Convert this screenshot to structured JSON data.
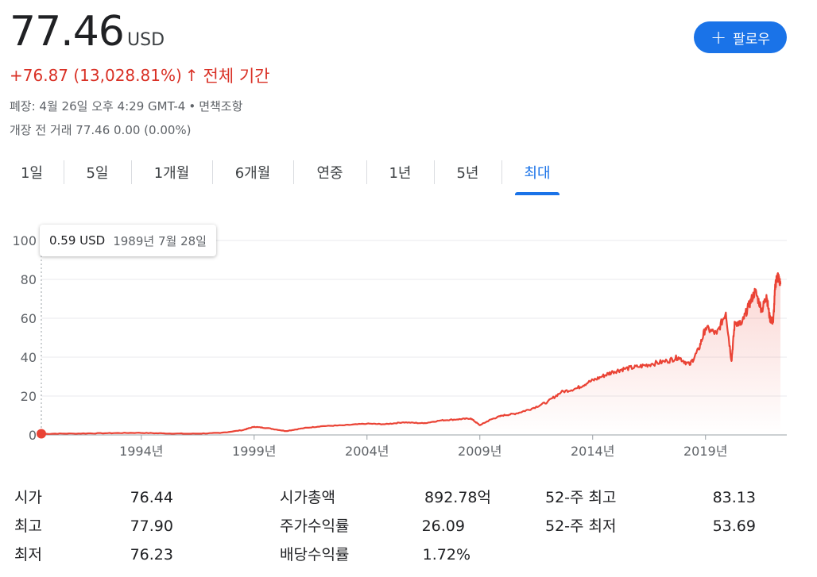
{
  "quote": {
    "price": "77.46",
    "currency": "USD",
    "change": "+76.87 (13,028.81%)",
    "change_arrow": "↑",
    "period": "전체 기간",
    "close_info": "폐장: 4월 26일 오후 4:29 GMT-4",
    "disclaimer": "면책조항",
    "premarket": "개장 전 거래 77.46 0.00 (0.00%)",
    "follow_label": "팔로우",
    "follow_icon": "plus-icon"
  },
  "tabs": [
    {
      "label": "1일"
    },
    {
      "label": "5일"
    },
    {
      "label": "1개월"
    },
    {
      "label": "6개월"
    },
    {
      "label": "연중"
    },
    {
      "label": "1년"
    },
    {
      "label": "5년"
    },
    {
      "label": "최대",
      "active": true
    }
  ],
  "tooltip": {
    "price": "0.59 USD",
    "date": "1989년 7월 28일"
  },
  "chart_data": {
    "type": "area",
    "title": "",
    "xlabel": "",
    "ylabel": "",
    "ylim": [
      0,
      100
    ],
    "xlim": [
      1989.57,
      2022.32
    ],
    "yticks": [
      "0",
      "20",
      "40",
      "60",
      "80",
      "100"
    ],
    "xticks": [
      {
        "value": 1994,
        "label": "1994년"
      },
      {
        "value": 1999,
        "label": "1999년"
      },
      {
        "value": 2004,
        "label": "2004년"
      },
      {
        "value": 2009,
        "label": "2009년"
      },
      {
        "value": 2014,
        "label": "2014년"
      },
      {
        "value": 2019,
        "label": "2019년"
      }
    ],
    "grid": true,
    "line_color": "#ea4335",
    "series": [
      {
        "x": [
          1989.57,
          1991.0,
          1992.5,
          1993.8,
          1995.0,
          1996.2,
          1997.5,
          1998.5,
          1999.0,
          1999.6,
          2000.4,
          2001.2,
          2002.0,
          2003.0,
          2004.0,
          2004.8,
          2005.6,
          2006.5,
          2007.3,
          2008.0,
          2008.6,
          2009.0,
          2009.5,
          2010.0,
          2010.6,
          2011.3,
          2012.0,
          2012.6,
          2013.3,
          2013.8,
          2014.4,
          2014.9,
          2015.4,
          2016.0,
          2016.6,
          2017.3,
          2017.8,
          2018.3,
          2018.7,
          2019.0,
          2019.5,
          2019.9,
          2020.15,
          2020.3,
          2020.6,
          2020.9,
          2021.2,
          2021.5,
          2021.7,
          2021.85,
          2022.0,
          2022.1,
          2022.2,
          2022.32
        ],
        "y": [
          0.59,
          0.7,
          0.9,
          1.1,
          0.8,
          0.6,
          1.0,
          2.5,
          4.2,
          3.5,
          2.0,
          3.5,
          4.5,
          5.0,
          5.8,
          5.5,
          6.5,
          6.0,
          7.5,
          8.0,
          8.5,
          5.0,
          8.0,
          10.0,
          11.0,
          13.5,
          17.0,
          22.0,
          24.0,
          27.0,
          30.0,
          32.5,
          34.0,
          35.0,
          36.5,
          38.0,
          40.0,
          36.0,
          44.0,
          55.0,
          52.0,
          63.0,
          38.0,
          58.0,
          57.0,
          66.0,
          74.0,
          64.0,
          72.0,
          60.0,
          58.0,
          78.0,
          82.0,
          77.46
        ]
      }
    ]
  },
  "stats": [
    {
      "label": "시가",
      "value": "76.44"
    },
    {
      "label": "최고",
      "value": "77.90"
    },
    {
      "label": "최저",
      "value": "76.23"
    },
    {
      "label": "시가총액",
      "value": "892.78억"
    },
    {
      "label": "주가수익률",
      "value": "26.09"
    },
    {
      "label": "배당수익률",
      "value": "1.72%"
    },
    {
      "label": "52-주 최고",
      "value": "83.13"
    },
    {
      "label": "52-주 최저",
      "value": "53.69"
    }
  ]
}
